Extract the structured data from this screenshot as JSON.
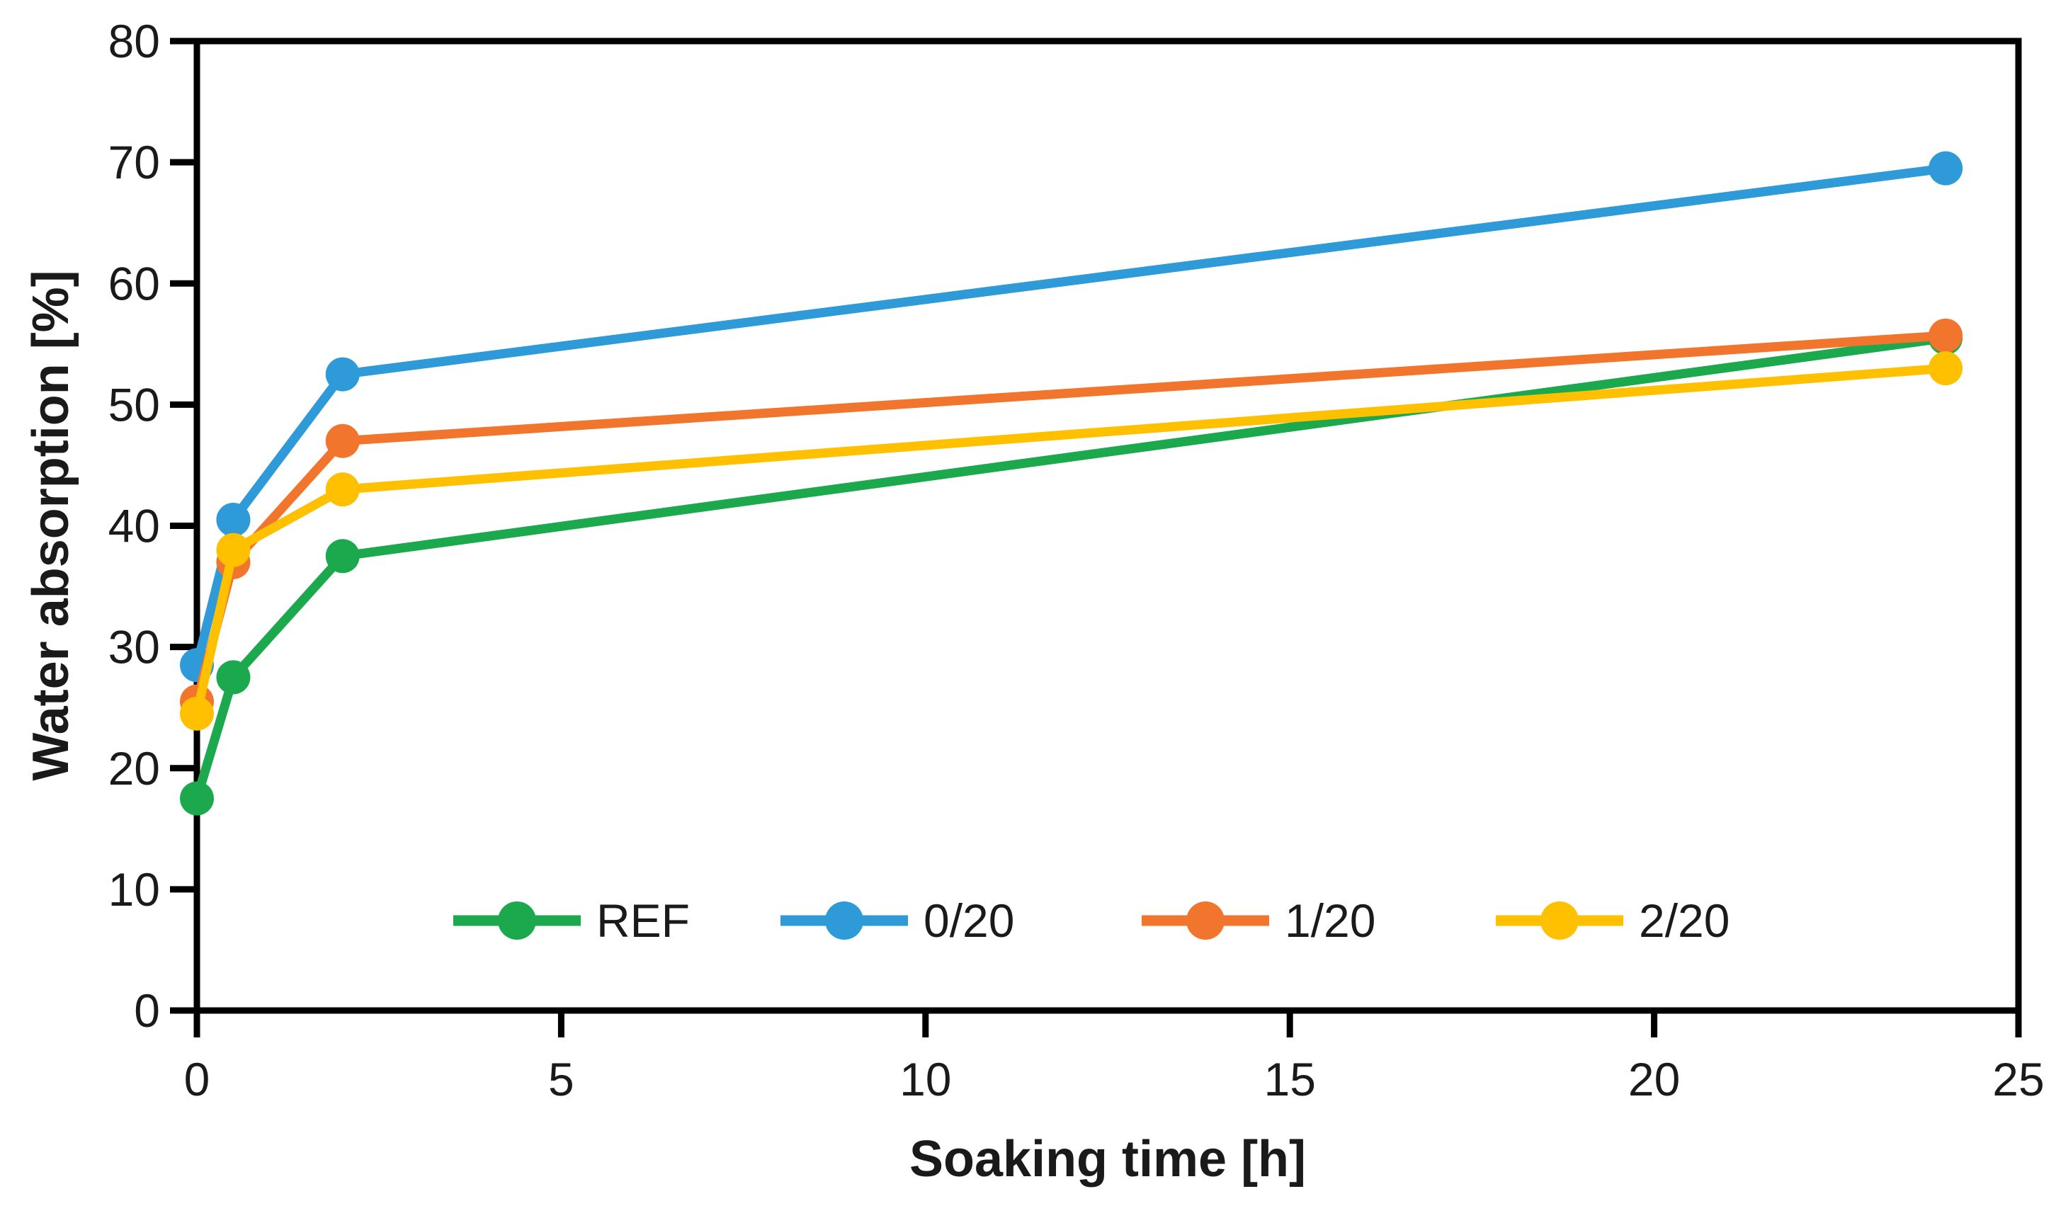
{
  "chart_data": {
    "type": "line",
    "title": "",
    "xlabel": "Soaking time [h]",
    "ylabel": "Water absorption [%]",
    "x": [
      0,
      0.5,
      2,
      24
    ],
    "series": [
      {
        "name": "REF",
        "color": "#1CA94E",
        "values": [
          17.5,
          27.5,
          37.5,
          55.5
        ]
      },
      {
        "name": "0/20",
        "color": "#2E9AD8",
        "values": [
          28.5,
          40.5,
          52.5,
          69.5
        ]
      },
      {
        "name": "1/20",
        "color": "#F1752C",
        "values": [
          25.5,
          37.0,
          47.0,
          55.7
        ]
      },
      {
        "name": "2/20",
        "color": "#FFC000",
        "values": [
          24.5,
          38.0,
          43.0,
          53.0
        ]
      }
    ],
    "xlim": [
      0,
      25
    ],
    "ylim": [
      0,
      80
    ],
    "xticks": [
      0,
      5,
      10,
      15,
      20,
      25
    ],
    "yticks": [
      0,
      10,
      20,
      30,
      40,
      50,
      60,
      70,
      80
    ],
    "grid": false,
    "legend_position": "inside-bottom",
    "marker": "circle",
    "axis_color": "#000000",
    "label_color": "#1a1a1a"
  }
}
